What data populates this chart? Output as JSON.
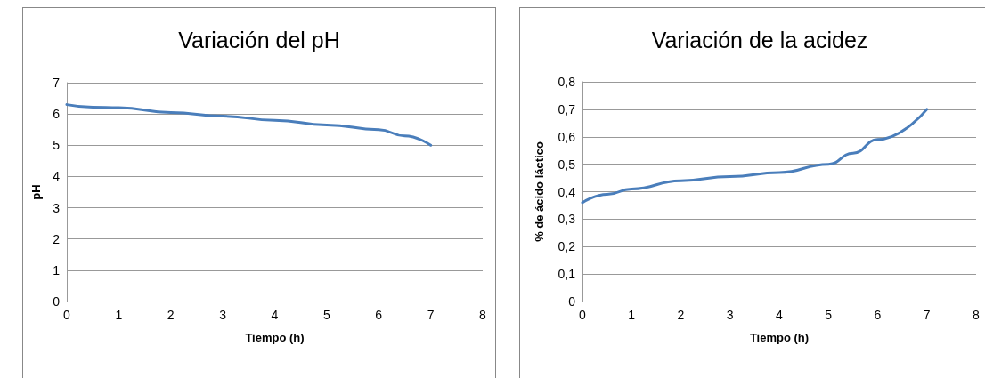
{
  "chart_data": [
    {
      "type": "line",
      "title": "Variación del pH",
      "xlabel": "Tiempo (h)",
      "ylabel": "pH",
      "x": [
        0,
        0.5,
        1,
        2,
        3,
        4,
        5,
        6,
        6.5,
        7
      ],
      "series": [
        {
          "color": "#4a7ebb",
          "values": [
            6.3,
            6.22,
            6.2,
            6.05,
            5.93,
            5.8,
            5.65,
            5.5,
            5.3,
            5.0
          ]
        }
      ],
      "xlim": [
        0,
        8
      ],
      "xticks": [
        0,
        1,
        2,
        3,
        4,
        5,
        6,
        7,
        8
      ],
      "ylim": [
        0,
        7
      ],
      "yticks": [
        0,
        1,
        2,
        3,
        4,
        5,
        6,
        7
      ],
      "grid": "y",
      "legend": false,
      "marker": "none",
      "line_style": "solid"
    },
    {
      "type": "line",
      "title": "Variación de la acidez",
      "xlabel": "Tiempo (h)",
      "ylabel": "% de ácido láctico",
      "x": [
        0,
        0.5,
        1,
        2,
        3,
        4,
        5,
        5.5,
        6,
        7
      ],
      "series": [
        {
          "color": "#4a7ebb",
          "values": [
            0.36,
            0.39,
            0.41,
            0.44,
            0.455,
            0.47,
            0.5,
            0.54,
            0.59,
            0.7
          ]
        }
      ],
      "xlim": [
        0,
        8
      ],
      "xticks": [
        0,
        1,
        2,
        3,
        4,
        5,
        6,
        7,
        8
      ],
      "ylim": [
        0,
        0.8
      ],
      "yticks": [
        0,
        {
          "value": 0.1,
          "label": "0,1"
        },
        {
          "value": 0.2,
          "label": "0,2"
        },
        {
          "value": 0.3,
          "label": "0,3"
        },
        {
          "value": 0.4,
          "label": "0,4"
        },
        {
          "value": 0.5,
          "label": "0,5"
        },
        {
          "value": 0.6,
          "label": "0,6"
        },
        {
          "value": 0.7,
          "label": "0,7"
        },
        {
          "value": 0.8,
          "label": "0,8"
        }
      ],
      "grid": "y",
      "legend": false,
      "marker": "none",
      "line_style": "solid"
    }
  ]
}
